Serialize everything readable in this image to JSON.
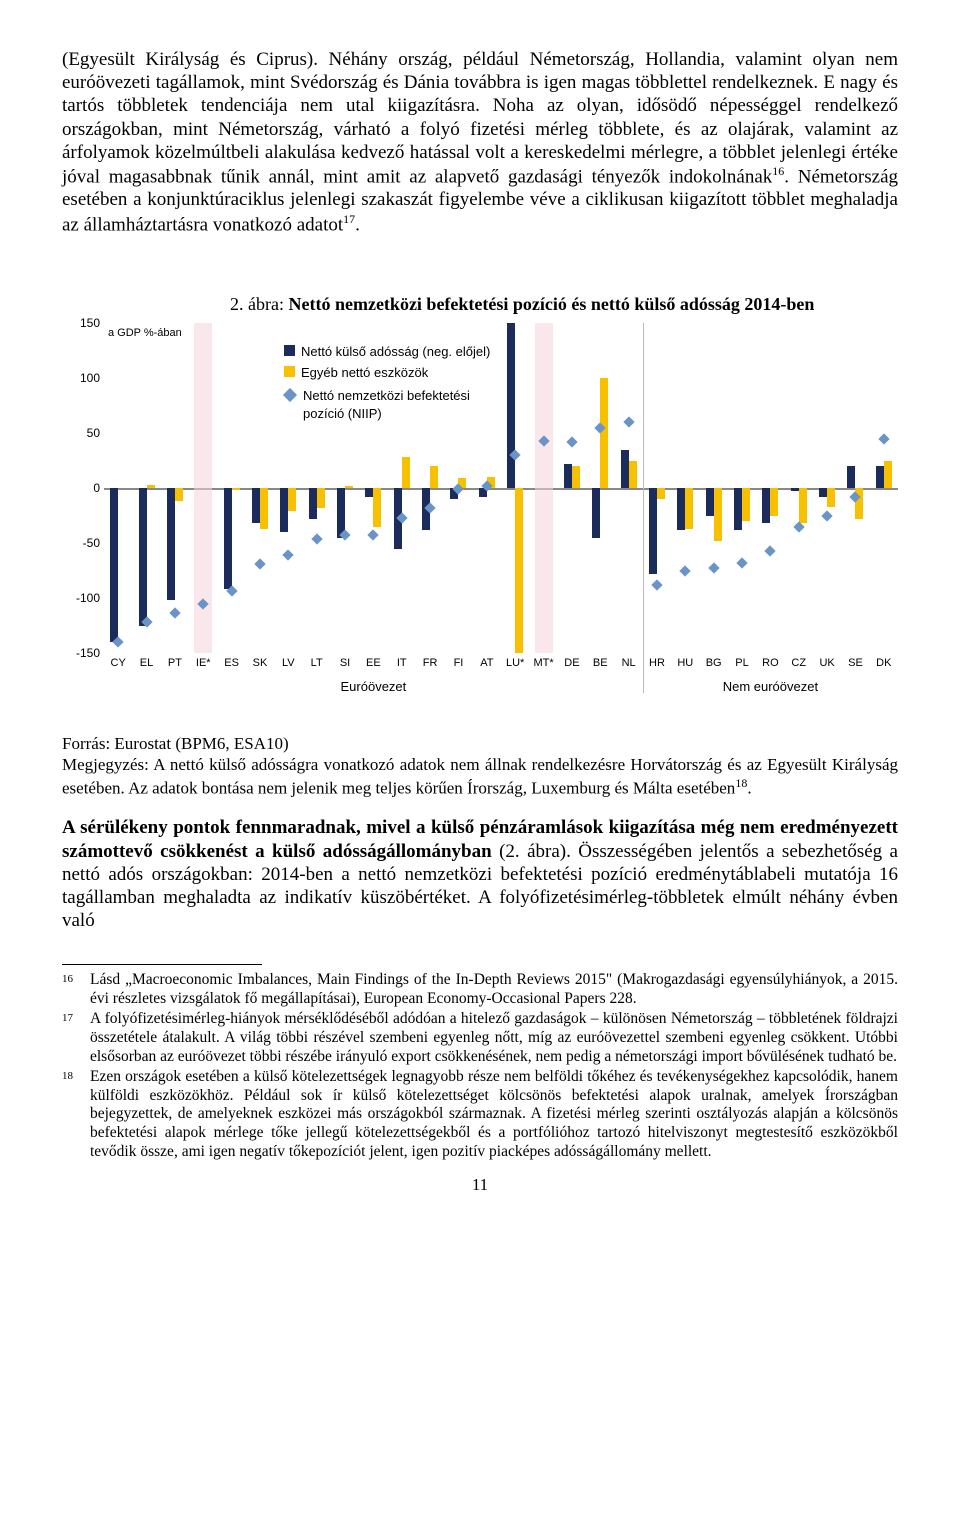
{
  "paragraphs": {
    "p1": "(Egyesült Királyság és Ciprus). Néhány ország, például Németország, Hollandia, valamint olyan nem euróövezeti tagállamok, mint Svédország és Dánia továbbra is igen magas többlettel rendelkeznek. E nagy és tartós többletek tendenciája nem utal kiigazításra. Noha az olyan, idősödő népességgel rendelkező országokban, mint Németország, várható a folyó fizetési mérleg többlete, és az olajárak, valamint az árfolyamok közelmúltbeli alakulása kedvező hatással volt a kereskedelmi mérlegre, a többlet jelenlegi értéke jóval magasabbnak tűnik annál, mint amit az alapvető gazdasági tényezők indokolnának",
    "p1_sup": "16",
    "p1b": ". Németország esetében a konjunktúraciklus jelenlegi szakaszát figyelembe véve a ciklikusan kiigazított többlet meghaladja az államháztartásra vonatkozó adatot",
    "p1b_sup": "17",
    "p1c": "."
  },
  "chart": {
    "figure_label": "2. ábra: ",
    "title": "Nettó nemzetközi befektetési pozíció és nettó külső adósság 2014-ben",
    "gdp_label": "a GDP %-ában",
    "legend": {
      "s1": "Nettó külső adósság (neg. előjel)",
      "s2": "Egyéb nettó eszközök",
      "s3": "Nettó nemzetközi befektetési pozíció (NIIP)"
    },
    "colors": {
      "debt": "#1a2b5c",
      "assets": "#f7c000",
      "marker": "#6b94c6",
      "axis": "#888888"
    },
    "ylim": [
      -150,
      150
    ],
    "ytick_step": 50,
    "yticks": [
      "150",
      "100",
      "50",
      "0",
      "-50",
      "-100",
      "-150"
    ],
    "categories": [
      "CY",
      "EL",
      "PT",
      "IE*",
      "ES",
      "SK",
      "LV",
      "LT",
      "SI",
      "EE",
      "IT",
      "FR",
      "FI",
      "AT",
      "LU*",
      "MT*",
      "DE",
      "BE",
      "NL",
      "HR",
      "HU",
      "BG",
      "PL",
      "RO",
      "CZ",
      "UK",
      "SE",
      "DK"
    ],
    "eurozone_count": 19,
    "group1": "Euróövezet",
    "group2": "Nem euróövezet",
    "data": [
      {
        "c": "CY",
        "debt": -140,
        "assets": 0,
        "m": -140
      },
      {
        "c": "EL",
        "debt": -125,
        "assets": 3,
        "m": -122
      },
      {
        "c": "PT",
        "debt": -102,
        "assets": -12,
        "m": -114
      },
      {
        "c": "IE*",
        "debt": 0,
        "assets": 0,
        "m": -105,
        "special": true
      },
      {
        "c": "ES",
        "debt": -92,
        "assets": -2,
        "m": -94
      },
      {
        "c": "SK",
        "debt": -32,
        "assets": -37,
        "m": -69
      },
      {
        "c": "LV",
        "debt": -40,
        "assets": -21,
        "m": -61
      },
      {
        "c": "LT",
        "debt": -28,
        "assets": -18,
        "m": -46
      },
      {
        "c": "SI",
        "debt": -45,
        "assets": 2,
        "m": -43
      },
      {
        "c": "EE",
        "debt": -8,
        "assets": -35,
        "m": -43
      },
      {
        "c": "IT",
        "debt": -55,
        "assets": 28,
        "m": -27
      },
      {
        "c": "FR",
        "debt": -38,
        "assets": 20,
        "m": -18
      },
      {
        "c": "FI",
        "debt": -10,
        "assets": 9,
        "m": -1
      },
      {
        "c": "AT",
        "debt": -8,
        "assets": 10,
        "m": 2
      },
      {
        "c": "LU*",
        "debt": 150,
        "assets": -150,
        "m": 30,
        "overflow": true
      },
      {
        "c": "MT*",
        "debt": 0,
        "assets": 0,
        "m": 43,
        "special": true
      },
      {
        "c": "DE",
        "debt": 22,
        "assets": 20,
        "m": 42
      },
      {
        "c": "BE",
        "debt": -45,
        "assets": 100,
        "m": 55
      },
      {
        "c": "NL",
        "debt": 35,
        "assets": 25,
        "m": 60
      },
      {
        "c": "HR",
        "debt": -78,
        "assets": -10,
        "m": -88
      },
      {
        "c": "HU",
        "debt": -38,
        "assets": -37,
        "m": -75
      },
      {
        "c": "BG",
        "debt": -25,
        "assets": -48,
        "m": -73
      },
      {
        "c": "PL",
        "debt": -38,
        "assets": -30,
        "m": -68
      },
      {
        "c": "RO",
        "debt": -32,
        "assets": -25,
        "m": -57
      },
      {
        "c": "CZ",
        "debt": -3,
        "assets": -32,
        "m": -35
      },
      {
        "c": "UK",
        "debt": -8,
        "assets": -17,
        "m": -25
      },
      {
        "c": "SE",
        "debt": 20,
        "assets": -28,
        "m": -8
      },
      {
        "c": "DK",
        "debt": 20,
        "assets": 25,
        "m": 45
      }
    ]
  },
  "source": {
    "line1": "Forrás: Eurostat (BPM6, ESA10)",
    "line2a": "Megjegyzés: A nettó külső adósságra vonatkozó adatok nem állnak rendelkezésre Horvátország és az Egyesült Királyság esetében. Az adatok bontása nem jelenik meg teljes körűen Írország, Luxemburg és Málta esetében",
    "line2_sup": "18",
    "line2b": "."
  },
  "p2": {
    "bold": "A sérülékeny pontok fennmaradnak, mivel a külső pénzáramlások kiigazítása még nem eredményezett számottevő csökkenést a külső adósságállományban ",
    "bold2": "(2. ábra)",
    "rest": ". Összességében jelentős a sebezhetőség a nettó adós országokban: 2014-ben a nettó nemzetközi befektetési pozíció eredménytáblabeli mutatója 16 tagállamban meghaladta az indikatív küszöbértéket. A folyófizetésimérleg-többletek elmúlt néhány évben való"
  },
  "footnotes": {
    "n16": "16",
    "t16": "Lásd „Macroeconomic Imbalances, Main Findings of the In-Depth Reviews 2015\" (Makrogazdasági egyensúlyhiányok, a 2015. évi részletes vizsgálatok fő megállapításai), European Economy-Occasional Papers 228.",
    "n17": "17",
    "t17": "A folyófizetésimérleg-hiányok mérséklődéséből adódóan a hitelező gazdaságok – különösen Németország – többletének földrajzi összetétele átalakult. A világ többi részével szembeni egyenleg nőtt, míg az euróövezettel szembeni egyenleg csökkent. Utóbbi elsősorban az euróövezet többi részébe irányuló export csökkenésének, nem pedig a németországi import bővülésének tudható be.",
    "n18": "18",
    "t18": "Ezen országok esetében a külső kötelezettségek legnagyobb része nem belföldi tőkéhez és tevékenységekhez kapcsolódik, hanem külföldi eszközökhöz. Például sok ír külső kötelezettséget kölcsönös befektetési alapok uralnak, amelyek Írországban bejegyzettek, de amelyeknek eszközei más országokból származnak. A fizetési mérleg szerinti osztályozás alapján a kölcsönös befektetési alapok mérlege tőke jellegű kötelezettségekből és a portfólióhoz tartozó hitelviszonyt megtestesítő eszközökből tevődik össze, ami igen negatív tőkepozíciót jelent, igen pozitív piacképes adósságállomány mellett."
  },
  "pagenum": "11"
}
